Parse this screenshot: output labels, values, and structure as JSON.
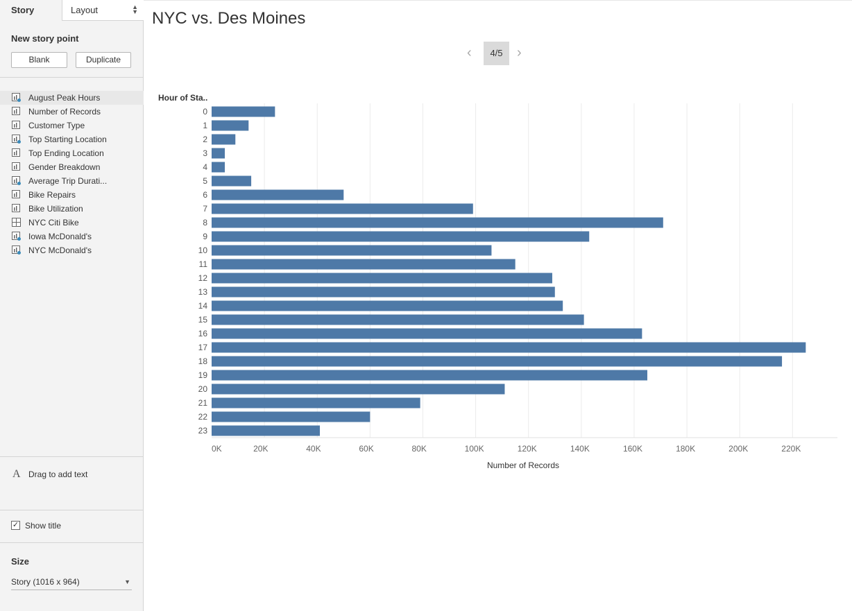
{
  "sidebar": {
    "tabs": {
      "story": "Story",
      "layout": "Layout"
    },
    "new_story_point": "New story point",
    "buttons": {
      "blank": "Blank",
      "duplicate": "Duplicate"
    },
    "items": [
      {
        "label": "August Peak Hours",
        "icon": "sheet-check-icon"
      },
      {
        "label": "Number of Records",
        "icon": "sheet-icon"
      },
      {
        "label": "Customer Type",
        "icon": "sheet-icon"
      },
      {
        "label": "Top Starting Location",
        "icon": "sheet-check-icon"
      },
      {
        "label": "Top Ending Location",
        "icon": "sheet-icon"
      },
      {
        "label": "Gender Breakdown",
        "icon": "sheet-icon"
      },
      {
        "label": "Average Trip Durati...",
        "icon": "sheet-check-icon"
      },
      {
        "label": "Bike Repairs",
        "icon": "sheet-icon"
      },
      {
        "label": "Bike Utilization",
        "icon": "sheet-icon"
      },
      {
        "label": "NYC Citi Bike",
        "icon": "dashboard-icon"
      },
      {
        "label": "Iowa McDonald's",
        "icon": "sheet-check-icon"
      },
      {
        "label": "NYC McDonald's",
        "icon": "sheet-check-icon"
      }
    ],
    "drag_text": "Drag to add text",
    "show_title": "Show title",
    "size_heading": "Size",
    "size_value": "Story (1016 x 964)"
  },
  "story": {
    "title": "NYC vs. Des Moines",
    "counter": "4/5"
  },
  "colors": {
    "bar": "#4e79a7",
    "grid": "#ebebeb",
    "accent_check": "#3b8bba"
  },
  "chart_data": {
    "type": "bar",
    "orientation": "horizontal",
    "row_header": "Hour of Sta..",
    "xlabel": "Number of Records",
    "categories": [
      "0",
      "1",
      "2",
      "3",
      "4",
      "5",
      "6",
      "7",
      "8",
      "9",
      "10",
      "11",
      "12",
      "13",
      "14",
      "15",
      "16",
      "17",
      "18",
      "19",
      "20",
      "21",
      "22",
      "23"
    ],
    "values": [
      24000,
      14000,
      9000,
      5000,
      5000,
      15000,
      50000,
      99000,
      171000,
      143000,
      106000,
      115000,
      129000,
      130000,
      133000,
      141000,
      163000,
      225000,
      216000,
      165000,
      111000,
      79000,
      60000,
      41000
    ],
    "x_ticks": [
      "0K",
      "20K",
      "40K",
      "60K",
      "80K",
      "100K",
      "120K",
      "140K",
      "160K",
      "180K",
      "200K",
      "220K"
    ],
    "xlim": [
      0,
      237000
    ],
    "grid": true
  }
}
